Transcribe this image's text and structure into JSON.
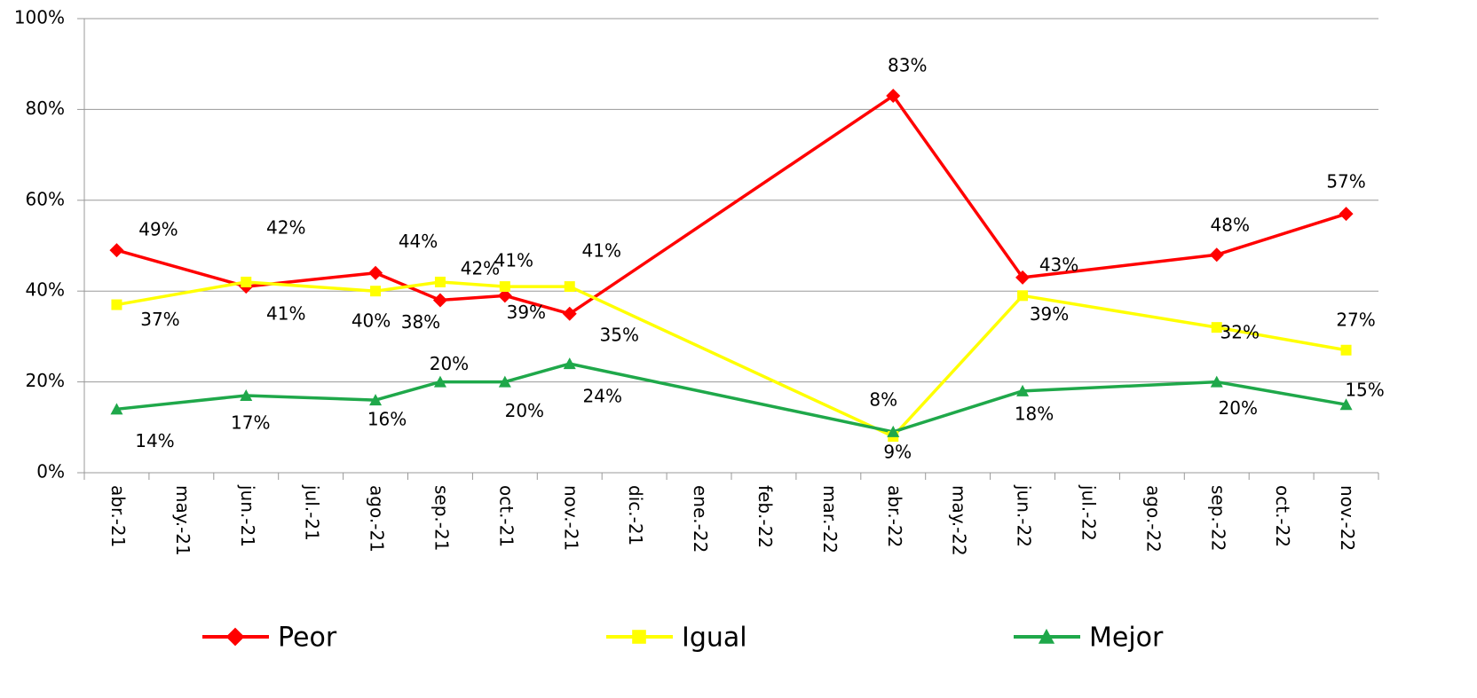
{
  "chart_data": {
    "type": "line",
    "categories": [
      "abr.-21",
      "may.-21",
      "jun.-21",
      "jul.-21",
      "ago.-21",
      "sep.-21",
      "oct.-21",
      "nov.-21",
      "dic.-21",
      "ene.-22",
      "feb.-22",
      "mar.-22",
      "abr.-22",
      "may.-22",
      "jun.-22",
      "jul.-22",
      "ago.-22",
      "sep.-22",
      "oct.-22",
      "nov.-22"
    ],
    "series": [
      {
        "name": "Peor",
        "color": "#ff0000",
        "marker": "diamond",
        "values": [
          49,
          null,
          41,
          null,
          44,
          38,
          39,
          35,
          null,
          null,
          null,
          null,
          83,
          null,
          43,
          null,
          null,
          48,
          null,
          57
        ],
        "value_labels": [
          "49%",
          null,
          "41%",
          null,
          "44%",
          "38%",
          "39%",
          "35%",
          null,
          null,
          null,
          null,
          "83%",
          null,
          "43%",
          null,
          null,
          "48%",
          null,
          "57%"
        ]
      },
      {
        "name": "Igual",
        "color": "#ffff00",
        "marker": "square",
        "values": [
          37,
          null,
          42,
          null,
          40,
          42,
          41,
          41,
          null,
          null,
          null,
          null,
          8,
          null,
          39,
          null,
          null,
          32,
          null,
          27
        ],
        "value_labels": [
          "37%",
          null,
          "42%",
          null,
          "40%",
          "42%",
          "41%",
          "41%",
          null,
          null,
          null,
          null,
          "8%",
          null,
          "39%",
          null,
          null,
          "32%",
          null,
          "27%"
        ]
      },
      {
        "name": "Mejor",
        "color": "#1fa84a",
        "marker": "triangle",
        "values": [
          14,
          null,
          17,
          null,
          16,
          20,
          20,
          24,
          null,
          null,
          null,
          null,
          9,
          null,
          18,
          null,
          null,
          20,
          null,
          15
        ],
        "value_labels": [
          "14%",
          null,
          "17%",
          null,
          "16%",
          "20%",
          "20%",
          "24%",
          null,
          null,
          null,
          null,
          "9%",
          null,
          "18%",
          null,
          null,
          "20%",
          null,
          "15%"
        ]
      }
    ],
    "ylim": [
      0,
      100
    ],
    "yticks": [
      {
        "value": 0,
        "label": "0%"
      },
      {
        "value": 20,
        "label": "20%"
      },
      {
        "value": 40,
        "label": "40%"
      },
      {
        "value": 60,
        "label": "60%"
      },
      {
        "value": 80,
        "label": "80%"
      },
      {
        "value": 100,
        "label": "100%"
      }
    ],
    "grid": true
  }
}
